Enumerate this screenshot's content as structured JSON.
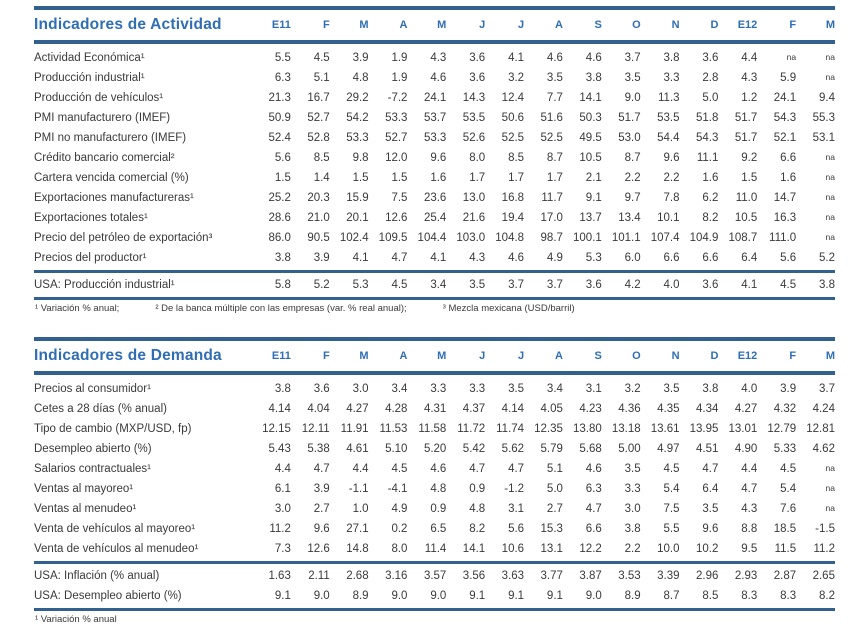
{
  "colors": {
    "accent_blue": "#2F6EB4",
    "rule_blue": "#33618F",
    "text": "#3A3A3A"
  },
  "columns": [
    "E11",
    "F",
    "M",
    "A",
    "M",
    "J",
    "J",
    "A",
    "S",
    "O",
    "N",
    "D",
    "E12",
    "F",
    "M"
  ],
  "activity": {
    "title": "Indicadores de Actividad",
    "rows": [
      {
        "label": "Actividad Económica¹",
        "values": [
          "5.5",
          "4.5",
          "3.9",
          "1.9",
          "4.3",
          "3.6",
          "4.1",
          "4.6",
          "4.6",
          "3.7",
          "3.8",
          "3.6",
          "4.4",
          "na",
          "na"
        ]
      },
      {
        "label": "Producción industrial¹",
        "values": [
          "6.3",
          "5.1",
          "4.8",
          "1.9",
          "4.6",
          "3.6",
          "3.2",
          "3.5",
          "3.8",
          "3.5",
          "3.3",
          "2.8",
          "4.3",
          "5.9",
          "na"
        ]
      },
      {
        "label": "Producción de vehículos¹",
        "values": [
          "21.3",
          "16.7",
          "29.2",
          "-7.2",
          "24.1",
          "14.3",
          "12.4",
          "7.7",
          "14.1",
          "9.0",
          "11.3",
          "5.0",
          "1.2",
          "24.1",
          "9.4"
        ]
      },
      {
        "label": "PMI manufacturero (IMEF)",
        "values": [
          "50.9",
          "52.7",
          "54.2",
          "53.3",
          "53.7",
          "53.5",
          "50.6",
          "51.6",
          "50.3",
          "51.7",
          "53.5",
          "51.8",
          "51.7",
          "54.3",
          "55.3"
        ]
      },
      {
        "label": "PMI no manufacturero (IMEF)",
        "values": [
          "52.4",
          "52.8",
          "53.3",
          "52.7",
          "53.3",
          "52.6",
          "52.5",
          "52.5",
          "49.5",
          "53.0",
          "54.4",
          "54.3",
          "51.7",
          "52.1",
          "53.1"
        ]
      },
      {
        "label": "Crédito bancario comercial²",
        "values": [
          "5.6",
          "8.5",
          "9.8",
          "12.0",
          "9.6",
          "8.0",
          "8.5",
          "8.7",
          "10.5",
          "8.7",
          "9.6",
          "11.1",
          "9.2",
          "6.6",
          "na"
        ]
      },
      {
        "label": "Cartera vencida comercial (%)",
        "values": [
          "1.5",
          "1.4",
          "1.5",
          "1.5",
          "1.6",
          "1.7",
          "1.7",
          "1.7",
          "2.1",
          "2.2",
          "2.2",
          "1.6",
          "1.5",
          "1.6",
          "na"
        ]
      },
      {
        "label": "Exportaciones manufactureras¹",
        "values": [
          "25.2",
          "20.3",
          "15.9",
          "7.5",
          "23.6",
          "13.0",
          "16.8",
          "11.7",
          "9.1",
          "9.7",
          "7.8",
          "6.2",
          "11.0",
          "14.7",
          "na"
        ]
      },
      {
        "label": "Exportaciones totales¹",
        "values": [
          "28.6",
          "21.0",
          "20.1",
          "12.6",
          "25.4",
          "21.6",
          "19.4",
          "17.0",
          "13.7",
          "13.4",
          "10.1",
          "8.2",
          "10.5",
          "16.3",
          "na"
        ]
      },
      {
        "label": "Precio del petróleo de exportación³",
        "values": [
          "86.0",
          "90.5",
          "102.4",
          "109.5",
          "104.4",
          "103.0",
          "104.8",
          "98.7",
          "100.1",
          "101.1",
          "107.4",
          "104.9",
          "108.7",
          "111.0",
          "na"
        ]
      },
      {
        "label": "Precios del productor¹",
        "values": [
          "3.8",
          "3.9",
          "4.1",
          "4.7",
          "4.1",
          "4.3",
          "4.6",
          "4.9",
          "5.3",
          "6.0",
          "6.6",
          "6.6",
          "6.4",
          "5.6",
          "5.2"
        ]
      }
    ],
    "usa_rows": [
      {
        "label": "USA: Producción industrial¹",
        "values": [
          "5.8",
          "5.2",
          "5.3",
          "4.5",
          "3.4",
          "3.5",
          "3.7",
          "3.7",
          "3.6",
          "4.2",
          "4.0",
          "3.6",
          "4.1",
          "4.5",
          "3.8"
        ]
      }
    ],
    "footnotes": [
      "¹ Variación % anual;",
      "² De la banca múltiple con las empresas (var. % real anual);",
      "³ Mezcla mexicana (USD/barril)"
    ]
  },
  "demand": {
    "title": "Indicadores de Demanda",
    "rows": [
      {
        "label": "Precios al consumidor¹",
        "values": [
          "3.8",
          "3.6",
          "3.0",
          "3.4",
          "3.3",
          "3.3",
          "3.5",
          "3.4",
          "3.1",
          "3.2",
          "3.5",
          "3.8",
          "4.0",
          "3.9",
          "3.7"
        ]
      },
      {
        "label": "Cetes a 28 días (% anual)",
        "values": [
          "4.14",
          "4.04",
          "4.27",
          "4.28",
          "4.31",
          "4.37",
          "4.14",
          "4.05",
          "4.23",
          "4.36",
          "4.35",
          "4.34",
          "4.27",
          "4.32",
          "4.24"
        ]
      },
      {
        "label": "Tipo de cambio (MXP/USD, fp)",
        "values": [
          "12.15",
          "12.11",
          "11.91",
          "11.53",
          "11.58",
          "11.72",
          "11.74",
          "12.35",
          "13.80",
          "13.18",
          "13.61",
          "13.95",
          "13.01",
          "12.79",
          "12.81"
        ]
      },
      {
        "label": "Desempleo abierto (%)",
        "values": [
          "5.43",
          "5.38",
          "4.61",
          "5.10",
          "5.20",
          "5.42",
          "5.62",
          "5.79",
          "5.68",
          "5.00",
          "4.97",
          "4.51",
          "4.90",
          "5.33",
          "4.62"
        ]
      },
      {
        "label": "Salarios contractuales¹",
        "values": [
          "4.4",
          "4.7",
          "4.4",
          "4.5",
          "4.6",
          "4.7",
          "4.7",
          "5.1",
          "4.6",
          "3.5",
          "4.5",
          "4.7",
          "4.4",
          "4.5",
          "na"
        ]
      },
      {
        "label": "Ventas al mayoreo¹",
        "values": [
          "6.1",
          "3.9",
          "-1.1",
          "-4.1",
          "4.8",
          "0.9",
          "-1.2",
          "5.0",
          "6.3",
          "3.3",
          "5.4",
          "6.4",
          "4.7",
          "5.4",
          "na"
        ]
      },
      {
        "label": "Ventas al menudeo¹",
        "values": [
          "3.0",
          "2.7",
          "1.0",
          "4.9",
          "0.9",
          "4.8",
          "3.1",
          "2.7",
          "4.7",
          "3.0",
          "7.5",
          "3.5",
          "4.3",
          "7.6",
          "na"
        ]
      },
      {
        "label": "Venta de vehículos al mayoreo¹",
        "values": [
          "11.2",
          "9.6",
          "27.1",
          "0.2",
          "6.5",
          "8.2",
          "5.6",
          "15.3",
          "6.6",
          "3.8",
          "5.5",
          "9.6",
          "8.8",
          "18.5",
          "-1.5"
        ]
      },
      {
        "label": "Venta de vehículos al menudeo¹",
        "values": [
          "7.3",
          "12.6",
          "14.8",
          "8.0",
          "11.4",
          "14.1",
          "10.6",
          "13.1",
          "12.2",
          "2.2",
          "10.0",
          "10.2",
          "9.5",
          "11.5",
          "11.2"
        ]
      }
    ],
    "usa_rows": [
      {
        "label": "USA: Inflación (% anual)",
        "values": [
          "1.63",
          "2.11",
          "2.68",
          "3.16",
          "3.57",
          "3.56",
          "3.63",
          "3.77",
          "3.87",
          "3.53",
          "3.39",
          "2.96",
          "2.93",
          "2.87",
          "2.65"
        ]
      },
      {
        "label": "USA: Desempleo abierto (%)",
        "values": [
          "9.1",
          "9.0",
          "8.9",
          "9.0",
          "9.0",
          "9.1",
          "9.1",
          "9.1",
          "9.0",
          "8.9",
          "8.7",
          "8.5",
          "8.3",
          "8.3",
          "8.2"
        ]
      }
    ],
    "footnotes": [
      "¹ Variación % anual"
    ]
  }
}
